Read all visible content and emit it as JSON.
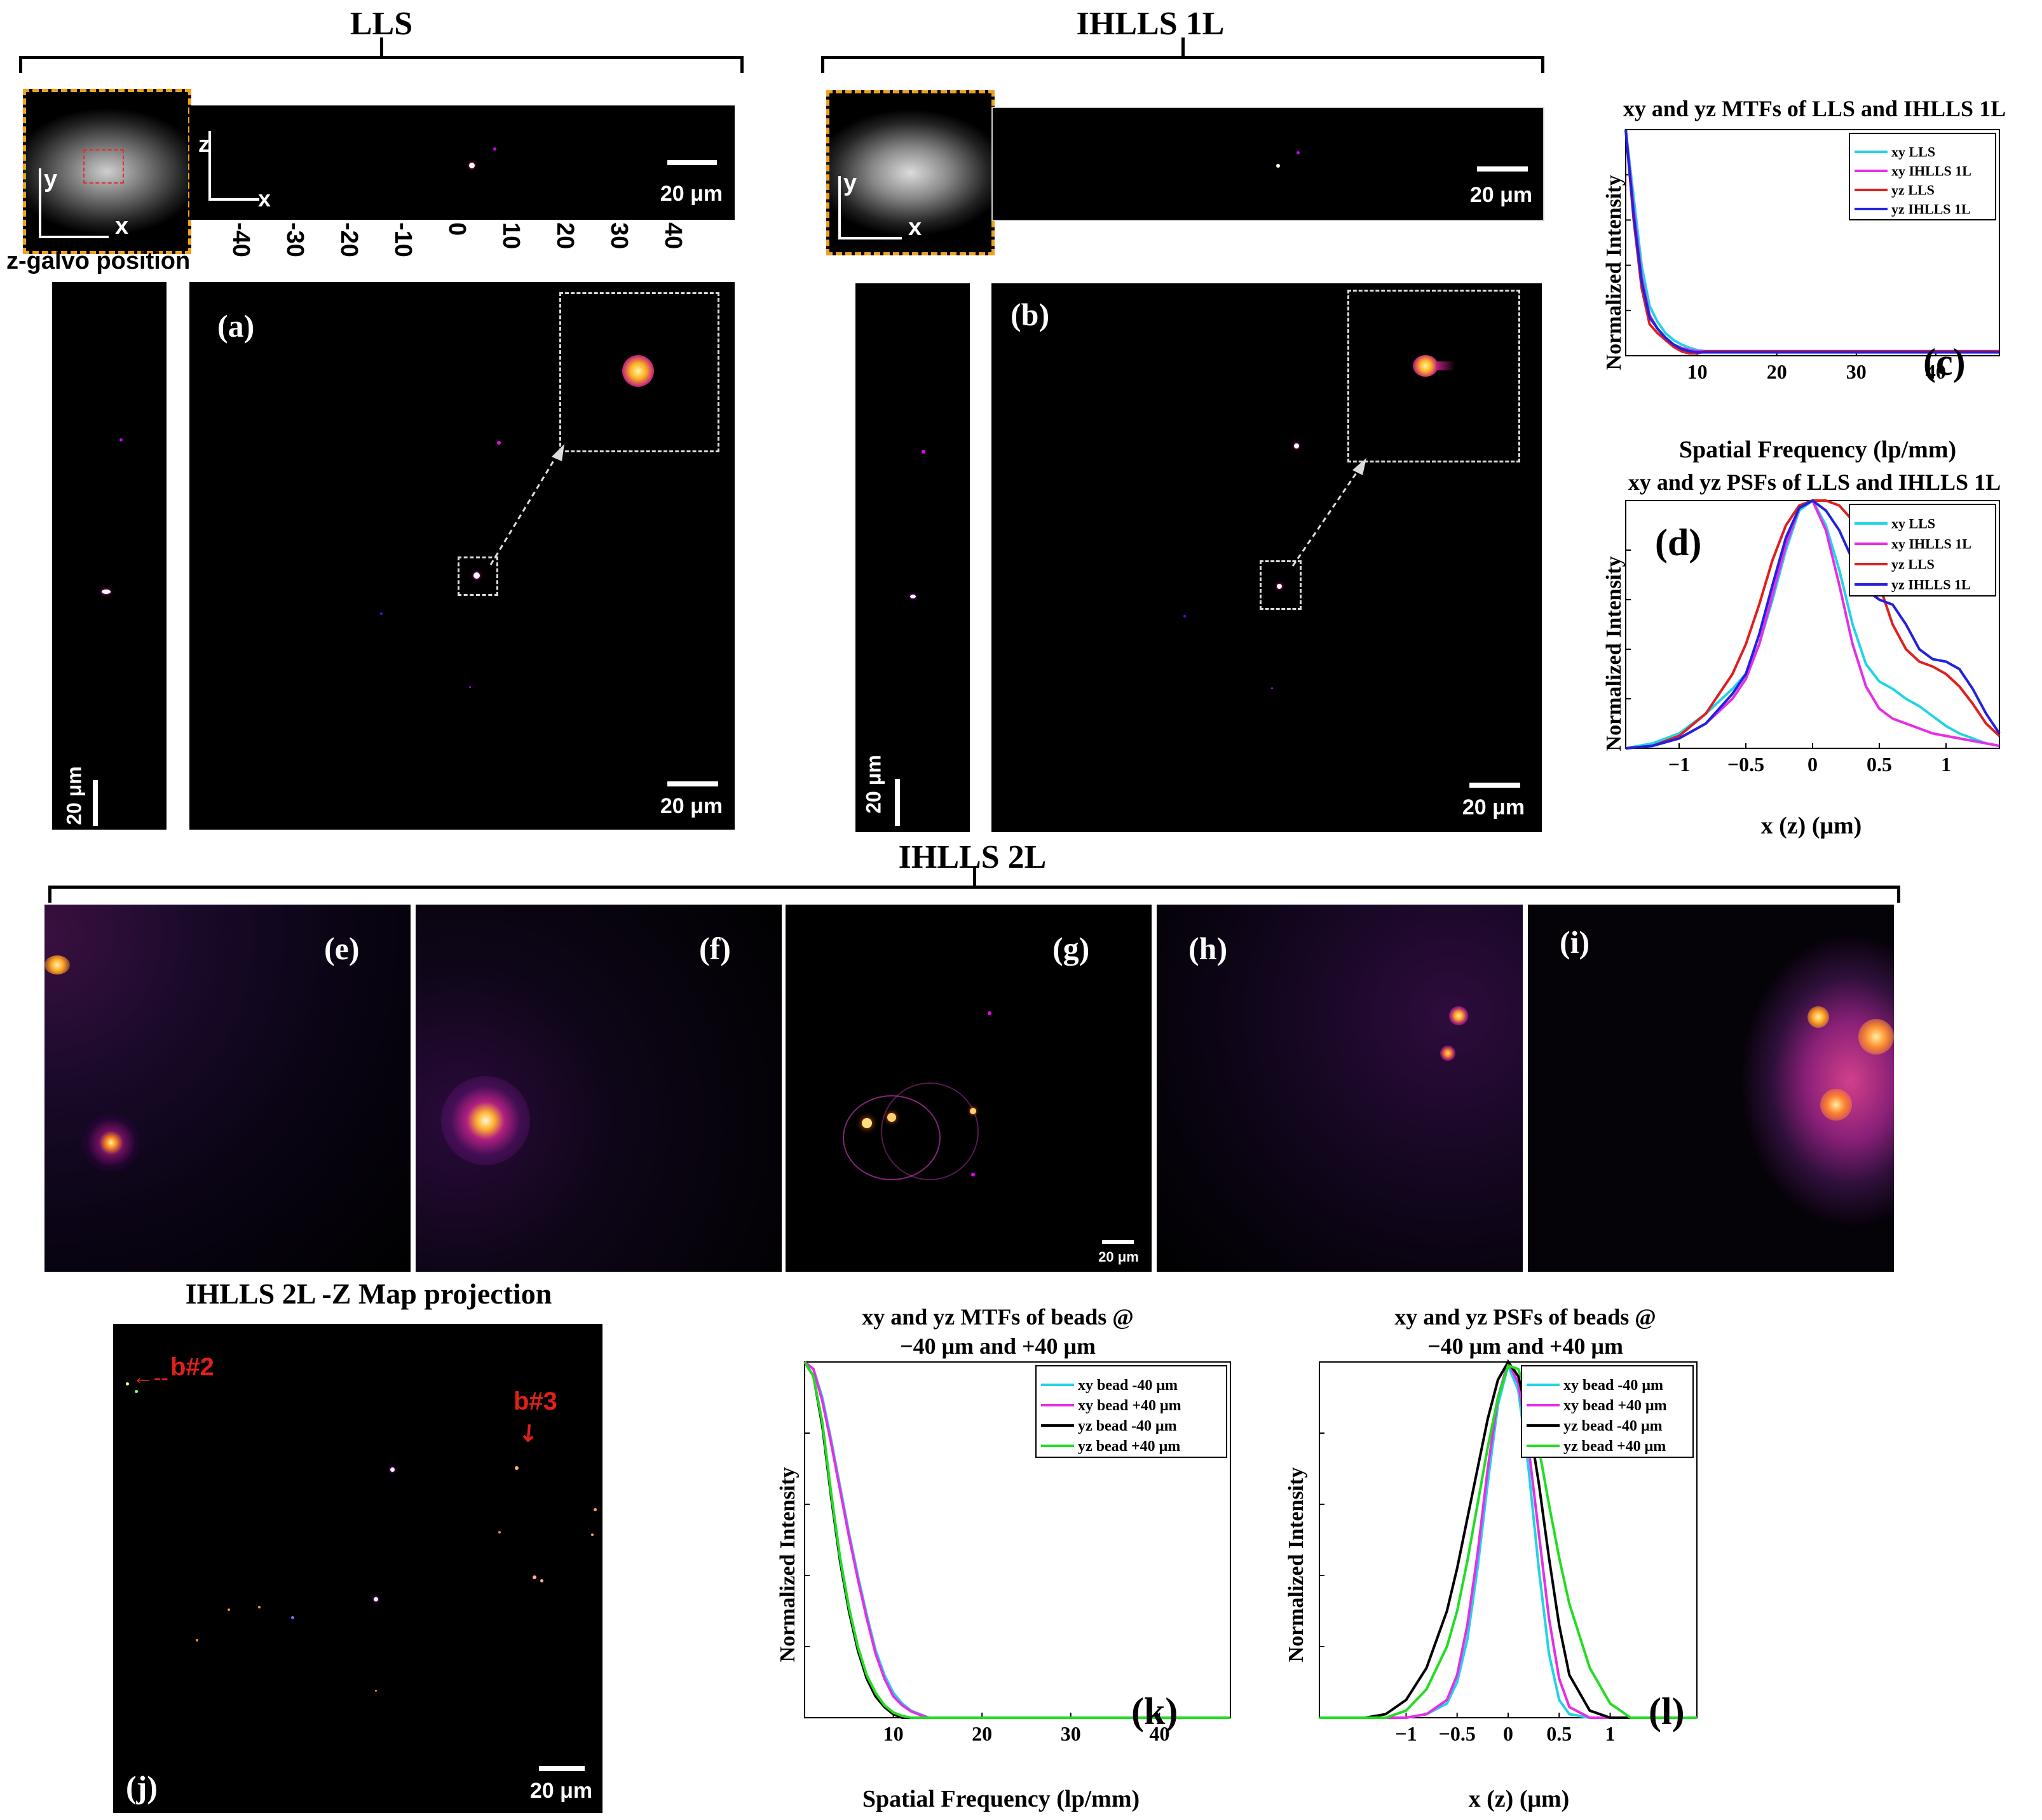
{
  "titles": {
    "lls": "LLS",
    "ihlls1l": "IHLLS 1L",
    "ihlls2l": "IHLLS 2L",
    "zmap": "IHLLS 2L -Z Map projection"
  },
  "axis_letters": {
    "y": "y",
    "x": "x",
    "z": "z"
  },
  "zgalvo": {
    "label": "z-galvo position",
    "ticks": [
      "-40",
      "-30",
      "-20",
      "-10",
      "0",
      "10",
      "20",
      "30",
      "40"
    ]
  },
  "scale_bar": "20 μm",
  "panel_labels": {
    "a": "(a)",
    "b": "(b)",
    "c": "(c)",
    "d": "(d)",
    "e": "(e)",
    "f": "(f)",
    "g": "(g)",
    "h": "(h)",
    "i": "(i)",
    "j": "(j)",
    "k": "(k)",
    "l": "(l)"
  },
  "annotations": {
    "b2": "b#2",
    "b3": "b#3"
  },
  "colors": {
    "cyan": "#22d3e6",
    "magenta": "#e62ee6",
    "red": "#e02020",
    "blue": "#2222dd",
    "black": "#000000",
    "green": "#22dd22",
    "annotation": "#e0201b"
  },
  "chart_data": [
    {
      "id": "c",
      "type": "line",
      "title": "xy and yz MTFs of LLS and IHLLS 1L",
      "xlabel": "Spatial Frequency (lp/mm)",
      "ylabel": "Normalized Intensity",
      "xlim": [
        1,
        48
      ],
      "ylim": [
        0,
        1
      ],
      "xticks": [
        10,
        20,
        30,
        40
      ],
      "legend_position": "top-right",
      "x": [
        1,
        2,
        3,
        4,
        5,
        6,
        7,
        8,
        9,
        10,
        11,
        12,
        15,
        20,
        30,
        40,
        48
      ],
      "series": [
        {
          "name": "xy LLS",
          "color": "#22d3e6",
          "values": [
            1.0,
            0.7,
            0.4,
            0.22,
            0.15,
            0.1,
            0.07,
            0.05,
            0.035,
            0.025,
            0.02,
            0.02,
            0.02,
            0.02,
            0.02,
            0.02,
            0.02
          ]
        },
        {
          "name": "xy IHLLS 1L",
          "color": "#e62ee6",
          "values": [
            1.0,
            0.65,
            0.35,
            0.18,
            0.12,
            0.08,
            0.05,
            0.035,
            0.025,
            0.02,
            0.02,
            0.02,
            0.02,
            0.02,
            0.02,
            0.02,
            0.02
          ]
        },
        {
          "name": "yz LLS",
          "color": "#e02020",
          "values": [
            1.0,
            0.6,
            0.3,
            0.14,
            0.1,
            0.07,
            0.04,
            0.02,
            0.01,
            0.01,
            0.02,
            0.02,
            0.02,
            0.02,
            0.02,
            0.02,
            0.02
          ]
        },
        {
          "name": "yz IHLLS 1L",
          "color": "#2222dd",
          "values": [
            1.0,
            0.62,
            0.33,
            0.17,
            0.12,
            0.08,
            0.05,
            0.03,
            0.02,
            0.015,
            0.015,
            0.015,
            0.015,
            0.015,
            0.015,
            0.015,
            0.015
          ]
        }
      ]
    },
    {
      "id": "d",
      "type": "line",
      "title": "xy and yz PSFs of LLS and IHLLS 1L",
      "xlabel": "x (z) (μm)",
      "ylabel": "Normalized Intensity",
      "xlim": [
        -1.4,
        1.4
      ],
      "ylim": [
        0,
        1
      ],
      "xticks": [
        -1,
        -0.5,
        0,
        0.5,
        1
      ],
      "xticklabels": [
        "−1",
        "−0.5",
        "0",
        "0.5",
        "1"
      ],
      "legend_position": "top-right",
      "x": [
        -1.4,
        -1.2,
        -1.0,
        -0.8,
        -0.6,
        -0.5,
        -0.4,
        -0.3,
        -0.2,
        -0.1,
        0,
        0.1,
        0.2,
        0.3,
        0.4,
        0.5,
        0.6,
        0.7,
        0.8,
        0.9,
        1.0,
        1.1,
        1.2,
        1.3,
        1.4
      ],
      "series": [
        {
          "name": "xy LLS",
          "color": "#22d3e6",
          "values": [
            0.0,
            0.02,
            0.06,
            0.14,
            0.24,
            0.3,
            0.42,
            0.6,
            0.8,
            0.96,
            1.0,
            0.9,
            0.72,
            0.5,
            0.34,
            0.27,
            0.24,
            0.2,
            0.17,
            0.13,
            0.09,
            0.06,
            0.04,
            0.02,
            0.01
          ]
        },
        {
          "name": "xy IHLLS 1L",
          "color": "#e62ee6",
          "values": [
            0.0,
            0.01,
            0.04,
            0.1,
            0.2,
            0.28,
            0.42,
            0.62,
            0.82,
            0.97,
            1.0,
            0.88,
            0.66,
            0.42,
            0.25,
            0.16,
            0.12,
            0.1,
            0.08,
            0.06,
            0.05,
            0.04,
            0.03,
            0.02,
            0.01
          ]
        },
        {
          "name": "yz LLS",
          "color": "#e02020",
          "values": [
            0.0,
            0.01,
            0.05,
            0.14,
            0.3,
            0.42,
            0.58,
            0.76,
            0.9,
            0.98,
            1.0,
            1.0,
            0.98,
            0.92,
            0.82,
            0.66,
            0.5,
            0.4,
            0.35,
            0.33,
            0.3,
            0.25,
            0.18,
            0.1,
            0.05
          ]
        },
        {
          "name": "yz IHLLS 1L",
          "color": "#2222dd",
          "values": [
            0.0,
            0.01,
            0.04,
            0.1,
            0.22,
            0.3,
            0.46,
            0.66,
            0.85,
            0.97,
            1.0,
            0.96,
            0.88,
            0.76,
            0.64,
            0.6,
            0.58,
            0.5,
            0.4,
            0.36,
            0.35,
            0.32,
            0.24,
            0.14,
            0.06
          ]
        }
      ]
    },
    {
      "id": "k",
      "type": "line",
      "title": "xy and yz MTFs of beads @",
      "subtitle": "−40 μm and +40 μm",
      "xlabel": "Spatial Frequency (lp/mm)",
      "ylabel": "Normalized Intensity",
      "xlim": [
        0,
        48
      ],
      "ylim": [
        0,
        1
      ],
      "xticks": [
        10,
        20,
        30,
        40
      ],
      "legend_position": "top-right",
      "x": [
        0,
        1,
        2,
        3,
        4,
        5,
        6,
        7,
        8,
        9,
        10,
        11,
        12,
        13,
        14,
        15,
        20,
        30,
        40,
        48
      ],
      "series": [
        {
          "name": "xy bead -40 μm",
          "color": "#22d3e6",
          "values": [
            1.0,
            0.98,
            0.9,
            0.78,
            0.65,
            0.52,
            0.4,
            0.29,
            0.19,
            0.12,
            0.07,
            0.04,
            0.02,
            0.01,
            0.0,
            0.0,
            0.0,
            0.0,
            0.0,
            0.0
          ]
        },
        {
          "name": "xy bead +40 μm",
          "color": "#e62ee6",
          "values": [
            1.0,
            0.98,
            0.89,
            0.77,
            0.64,
            0.51,
            0.39,
            0.28,
            0.18,
            0.11,
            0.06,
            0.035,
            0.018,
            0.008,
            0.0,
            0.0,
            0.0,
            0.0,
            0.0,
            0.0
          ]
        },
        {
          "name": "yz bead -40 μm",
          "color": "#000000",
          "values": [
            1.0,
            0.96,
            0.82,
            0.62,
            0.44,
            0.3,
            0.19,
            0.11,
            0.06,
            0.03,
            0.01,
            0.0,
            0.0,
            0.0,
            0.0,
            0.0,
            0.0,
            0.0,
            0.0,
            0.0
          ]
        },
        {
          "name": "yz bead +40 μm",
          "color": "#22dd22",
          "values": [
            1.0,
            0.96,
            0.83,
            0.63,
            0.45,
            0.31,
            0.2,
            0.12,
            0.07,
            0.035,
            0.015,
            0.005,
            0.0,
            0.0,
            0.0,
            0.0,
            0.0,
            0.0,
            0.0,
            0.0
          ]
        }
      ]
    },
    {
      "id": "l",
      "type": "line",
      "title": "xy and yz PSFs of beads @",
      "subtitle": "−40 μm and +40 μm",
      "xlabel": "x (z) (μm)",
      "ylabel": "Normalized Intensity",
      "xlim": [
        -1.85,
        1.85
      ],
      "ylim": [
        0,
        1
      ],
      "xticks": [
        -1,
        -0.5,
        0,
        0.5,
        1
      ],
      "xticklabels": [
        "−1",
        "−0.5",
        "0",
        "0.5",
        "1"
      ],
      "legend_position": "top-right",
      "x": [
        -1.85,
        -1.4,
        -1.2,
        -1.0,
        -0.8,
        -0.6,
        -0.5,
        -0.4,
        -0.3,
        -0.2,
        -0.1,
        0,
        0.1,
        0.2,
        0.3,
        0.4,
        0.5,
        0.6,
        0.8,
        1.0,
        1.2,
        1.4,
        1.85
      ],
      "series": [
        {
          "name": "xy bead -40 μm",
          "color": "#22d3e6",
          "values": [
            0.0,
            0.0,
            0.0,
            0.0,
            0.01,
            0.04,
            0.1,
            0.22,
            0.42,
            0.66,
            0.88,
            0.99,
            0.92,
            0.7,
            0.42,
            0.18,
            0.05,
            0.01,
            0.0,
            0.0,
            0.0,
            0.0,
            0.0
          ]
        },
        {
          "name": "xy bead +40 μm",
          "color": "#e62ee6",
          "values": [
            0.0,
            0.0,
            0.0,
            0.0,
            0.01,
            0.05,
            0.12,
            0.26,
            0.46,
            0.7,
            0.9,
            1.0,
            0.94,
            0.76,
            0.52,
            0.28,
            0.11,
            0.03,
            0.0,
            0.0,
            0.0,
            0.0,
            0.0
          ]
        },
        {
          "name": "yz bead -40 μm",
          "color": "#000000",
          "values": [
            0.0,
            0.0,
            0.01,
            0.05,
            0.14,
            0.3,
            0.42,
            0.56,
            0.7,
            0.84,
            0.95,
            1.0,
            0.96,
            0.84,
            0.66,
            0.45,
            0.26,
            0.12,
            0.02,
            0.0,
            0.0,
            0.0,
            0.0
          ]
        },
        {
          "name": "yz bead +40 μm",
          "color": "#22dd22",
          "values": [
            0.0,
            0.0,
            0.0,
            0.02,
            0.08,
            0.2,
            0.3,
            0.44,
            0.6,
            0.76,
            0.9,
            0.99,
            0.98,
            0.9,
            0.76,
            0.6,
            0.45,
            0.32,
            0.14,
            0.04,
            0.0,
            0.0,
            0.0
          ]
        }
      ]
    }
  ]
}
